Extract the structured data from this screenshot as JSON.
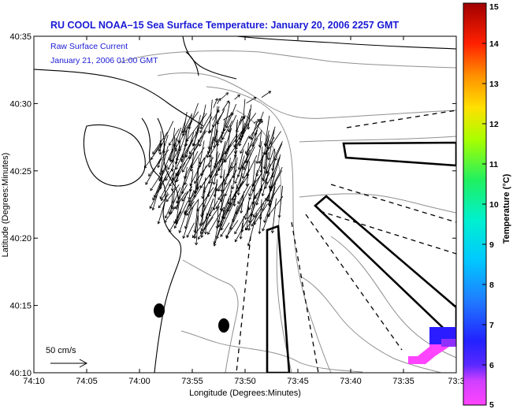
{
  "chart_data": {
    "type": "map",
    "title": "RU COOL  NOAA–15  Sea Surface Temperature:  January 20, 2006 2257 GMT",
    "annotation": {
      "line1": "Raw Surface Current",
      "line2": "January 21, 2006 01:00 GMT"
    },
    "scale_arrow_label": "50 cm/s",
    "xlabel": "Longitude (Degrees:Minutes)",
    "ylabel": "Latitude (Degrees:Minutes)",
    "x_ticks": [
      "74:10",
      "74:05",
      "74:00",
      "73:55",
      "73:50",
      "73:45",
      "73:40",
      "73:35",
      "73:3"
    ],
    "y_ticks": [
      "40:10",
      "40:15",
      "40:20",
      "40:25",
      "40:30",
      "40:35"
    ],
    "xlim_minutes_west": [
      630,
      570
    ],
    "ylim_minutes_north": [
      2410,
      2435
    ],
    "colorbar": {
      "label": "Temperature (°C)",
      "ticks": [
        "5",
        "6",
        "7",
        "8",
        "9",
        "10",
        "11",
        "12",
        "13",
        "14",
        "15"
      ],
      "range": [
        5,
        15
      ],
      "colormap": [
        "#ff44ff",
        "#c040ff",
        "#3b1bff",
        "#1f5cff",
        "#00b0ff",
        "#00f0f0",
        "#00e070",
        "#60ff20",
        "#d8ff00",
        "#ffc000",
        "#ff6000",
        "#ff0000",
        "#a00000"
      ]
    },
    "grid": false,
    "colors": {
      "title": "#1a1ad6",
      "land_line": "#000000",
      "bathymetry": "#888888",
      "vectors": "#000000"
    }
  }
}
